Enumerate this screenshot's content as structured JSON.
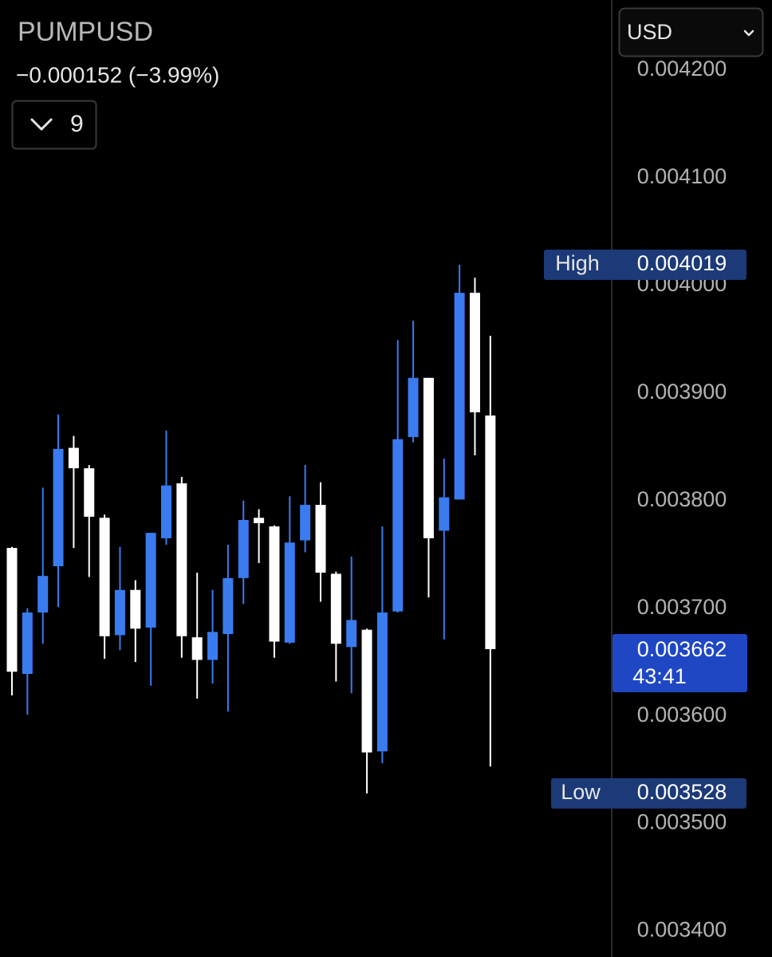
{
  "chart_data": {
    "type": "candlestick",
    "title": "PUMPUSD",
    "subtitle": "−0.000152 (−3.99%)",
    "interval": "9",
    "currency": "USD",
    "up_color": "#3a7bef",
    "down_color": "#ffffff",
    "ylim": [
      0.003376,
      0.004265
    ],
    "yticks": [
      {
        "value": 0.0042,
        "label": "0.004200"
      },
      {
        "value": 0.0041,
        "label": "0.004100"
      },
      {
        "value": 0.004,
        "label": "0.004000"
      },
      {
        "value": 0.0039,
        "label": "0.003900"
      },
      {
        "value": 0.0038,
        "label": "0.003800"
      },
      {
        "value": 0.0037,
        "label": "0.003700"
      },
      {
        "value": 0.0036,
        "label": "0.003600"
      },
      {
        "value": 0.0035,
        "label": "0.003500"
      },
      {
        "value": 0.0034,
        "label": "0.003400"
      }
    ],
    "open": [
      0.003756,
      0.003639,
      0.003696,
      0.003739,
      0.003849,
      0.00383,
      0.003784,
      0.003675,
      0.003717,
      0.003682,
      0.003765,
      0.003816,
      0.003673,
      0.003652,
      0.003676,
      0.003728,
      0.003784,
      0.003776,
      0.003668,
      0.003763,
      0.003796,
      0.003732,
      0.003664,
      0.00368,
      0.003567,
      0.003697,
      0.003859,
      0.003914,
      0.003772,
      0.003801,
      0.003993,
      0.003879
    ],
    "high": [
      0.003757,
      0.0037,
      0.003812,
      0.00388,
      0.00386,
      0.003833,
      0.003787,
      0.003757,
      0.003726,
      0.00377,
      0.003865,
      0.003822,
      0.003733,
      0.003717,
      0.003759,
      0.0038,
      0.003792,
      0.003777,
      0.003804,
      0.003833,
      0.003817,
      0.003734,
      0.003748,
      0.003681,
      0.003776,
      0.003949,
      0.003967,
      0.003914,
      0.003839,
      0.004019,
      0.004007,
      0.003953
    ],
    "low": [
      0.003619,
      0.003601,
      0.003667,
      0.003701,
      0.003756,
      0.003729,
      0.003653,
      0.003661,
      0.00365,
      0.003628,
      0.003759,
      0.003654,
      0.003616,
      0.00363,
      0.003604,
      0.003704,
      0.003742,
      0.003654,
      0.003667,
      0.003752,
      0.003706,
      0.003632,
      0.003621,
      0.003528,
      0.003556,
      0.003696,
      0.003854,
      0.00371,
      0.003671,
      0.003801,
      0.003842,
      0.003553
    ],
    "close": [
      0.003641,
      0.003696,
      0.00373,
      0.003848,
      0.00383,
      0.003785,
      0.003674,
      0.003717,
      0.003681,
      0.00377,
      0.003814,
      0.003674,
      0.003652,
      0.003678,
      0.003728,
      0.003782,
      0.003779,
      0.003669,
      0.003761,
      0.003796,
      0.003733,
      0.003667,
      0.003689,
      0.003566,
      0.003696,
      0.003857,
      0.003914,
      0.003765,
      0.003803,
      0.003993,
      0.003882,
      0.003662
    ],
    "high_marker": {
      "label": "High",
      "value": 0.004019,
      "value_label": "0.004019"
    },
    "low_marker": {
      "label": "Low",
      "value": 0.003528,
      "value_label": "0.003528"
    },
    "last_price": {
      "value": 0.003662,
      "value_label": "0.003662",
      "countdown": "43:41"
    }
  }
}
